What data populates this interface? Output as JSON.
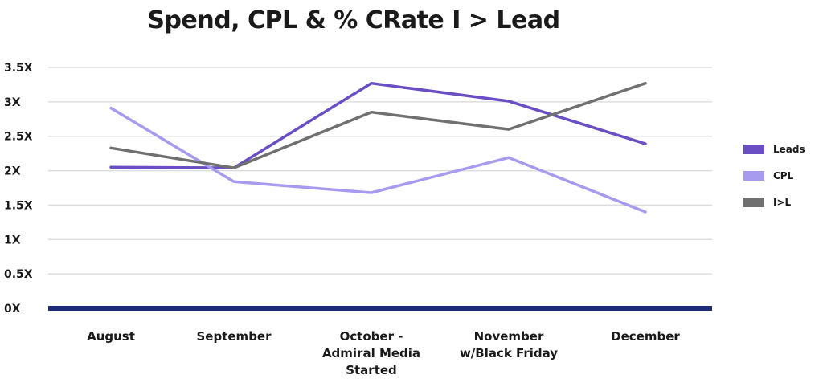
{
  "chart_data": {
    "type": "line",
    "title": "Spend, CPL & % CRate I > Lead",
    "categories": [
      [
        "August"
      ],
      [
        "September"
      ],
      [
        "October -",
        "Admiral Media",
        "Started"
      ],
      [
        "November",
        "w/Black Friday"
      ],
      [
        "December"
      ]
    ],
    "ylim": [
      0,
      3.5
    ],
    "yticks": [
      "0X",
      "0.5X",
      "1X",
      "1.5X",
      "2X",
      "2.5X",
      "3X",
      "3.5X"
    ],
    "grid": true,
    "legend_position": "right",
    "series": [
      {
        "name": "Leads",
        "color": "#6a4fc4",
        "values": [
          2.05,
          2.04,
          3.27,
          3.01,
          2.39
        ]
      },
      {
        "name": "CPL",
        "color": "#a79bf0",
        "values": [
          2.91,
          1.84,
          1.68,
          2.19,
          1.4
        ]
      },
      {
        "name": "I>L",
        "color": "#707070",
        "values": [
          2.33,
          2.04,
          2.85,
          2.6,
          3.27
        ]
      }
    ],
    "baseline_color": "#1f2a78",
    "grid_color": "#dddddd"
  }
}
